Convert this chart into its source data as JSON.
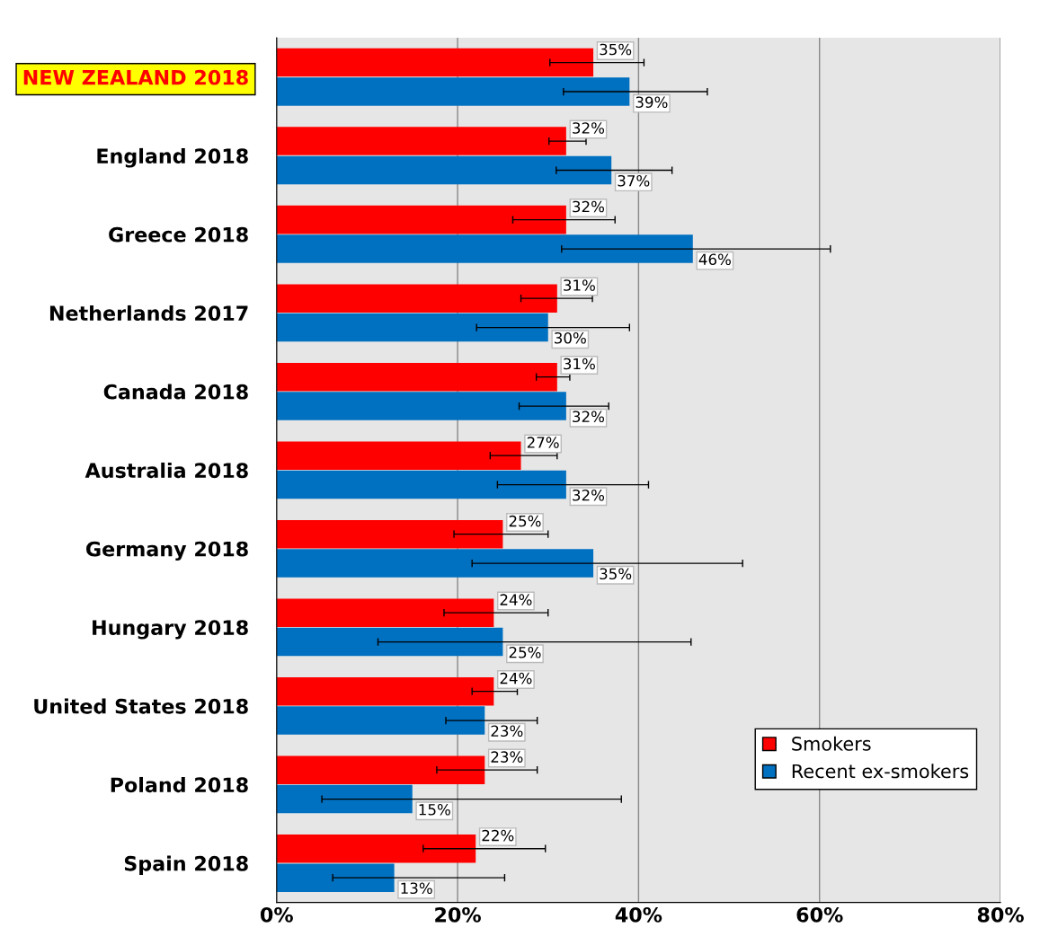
{
  "chart_data": {
    "type": "bar",
    "orientation": "horizontal",
    "categories": [
      "NEW ZEALAND 2018",
      "England 2018",
      "Greece 2018",
      "Netherlands 2017",
      "Canada 2018",
      "Australia 2018",
      "Germany 2018",
      "Hungary 2018",
      "United States 2018",
      "Poland 2018",
      "Spain 2018"
    ],
    "series": [
      {
        "name": "Smokers",
        "color": "#ff0000",
        "values": [
          35,
          32,
          32,
          31,
          31,
          27,
          25,
          24,
          24,
          23,
          22
        ],
        "value_labels": [
          "35%",
          "32%",
          "32%",
          "31%",
          "31%",
          "27%",
          "25%",
          "24%",
          "24%",
          "23%",
          "22%"
        ],
        "errors": [
          [
            30.2,
            40.6
          ],
          [
            30.1,
            34.2
          ],
          [
            26.1,
            37.4
          ],
          [
            27.0,
            34.9
          ],
          [
            28.7,
            32.4
          ],
          [
            23.6,
            31.0
          ],
          [
            19.6,
            30.0
          ],
          [
            18.5,
            30.0
          ],
          [
            21.6,
            26.6
          ],
          [
            17.7,
            28.8
          ],
          [
            16.2,
            29.7
          ]
        ]
      },
      {
        "name": "Recent ex-smokers",
        "color": "#0070c0",
        "values": [
          39,
          37,
          46,
          30,
          32,
          32,
          35,
          25,
          23,
          15,
          13
        ],
        "value_labels": [
          "39%",
          "37%",
          "46%",
          "30%",
          "32%",
          "32%",
          "35%",
          "25%",
          "23%",
          "15%",
          "13%"
        ],
        "errors": [
          [
            31.7,
            47.6
          ],
          [
            30.9,
            43.7
          ],
          [
            31.5,
            61.2
          ],
          [
            22.1,
            39.0
          ],
          [
            26.8,
            36.7
          ],
          [
            24.4,
            41.1
          ],
          [
            21.6,
            51.5
          ],
          [
            11.2,
            45.8
          ],
          [
            18.7,
            28.8
          ],
          [
            5.0,
            38.1
          ],
          [
            6.2,
            25.2
          ]
        ]
      }
    ],
    "xlim": [
      0,
      80
    ],
    "xticks": [
      {
        "value": 0,
        "label": "0%"
      },
      {
        "value": 20,
        "label": "20%"
      },
      {
        "value": 40,
        "label": "40%"
      },
      {
        "value": 60,
        "label": "60%"
      },
      {
        "value": 80,
        "label": "80%"
      }
    ],
    "grid": "x",
    "legend": "bottom right"
  }
}
